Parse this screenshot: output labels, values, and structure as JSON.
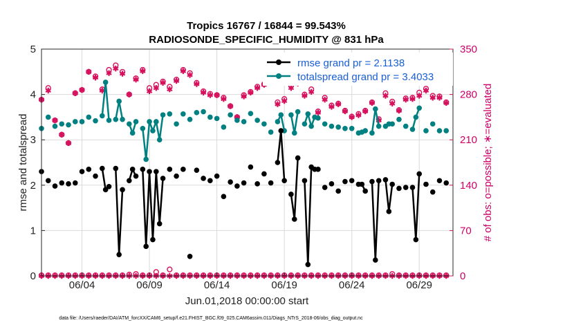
{
  "chart_data": {
    "type": "line",
    "title": "Tropics 16767 / 16844 = 99.543%",
    "subtitle": "RADIOSONDE_SPECIFIC_HUMIDITY @ 831 hPa",
    "xlabel": "Jun.01,2018 00:00:00 start",
    "ylabel": "rmse and totalspread",
    "y2label": "# of obs: o=possible; ∗=evaluated",
    "xlim": [
      1,
      31.5
    ],
    "ylim": [
      0,
      5
    ],
    "y2lim": [
      0,
      350
    ],
    "x_ticks": [
      {
        "v": 4,
        "label": "06/04"
      },
      {
        "v": 9,
        "label": "06/09"
      },
      {
        "v": 14,
        "label": "06/14"
      },
      {
        "v": 19,
        "label": "06/19"
      },
      {
        "v": 24,
        "label": "06/24"
      },
      {
        "v": 29,
        "label": "06/29"
      }
    ],
    "y_ticks": [
      "0",
      "1",
      "2",
      "3",
      "4",
      "5"
    ],
    "y2_ticks": [
      "0",
      "70",
      "140",
      "210",
      "280",
      "350"
    ],
    "colors": {
      "rmse": "#000000",
      "spread": "#008080",
      "obs": "#d6105c",
      "grid": "#d9d9d9"
    },
    "series": [
      {
        "name": "rmse grand pr = 2.1138",
        "key": "rmse",
        "x": [
          1.0,
          1.5,
          2.0,
          2.5,
          3.0,
          3.5,
          4.0,
          4.5,
          5.0,
          5.5,
          5.75,
          6.0,
          6.5,
          6.75,
          7.0,
          7.5,
          7.75,
          8.0,
          8.5,
          8.75,
          9.0,
          9.25,
          9.5,
          9.75,
          10.0,
          10.5,
          11.0,
          11.5,
          12.0,
          12.5,
          13.0,
          13.5,
          14.0,
          14.5,
          15.0,
          15.5,
          16.0,
          16.5,
          17.0,
          17.5,
          18.0,
          18.5,
          18.75,
          19.0,
          19.5,
          19.75,
          20.0,
          20.5,
          20.75,
          21.0,
          21.25,
          21.5,
          22.0,
          22.5,
          23.0,
          23.5,
          24.0,
          24.5,
          24.75,
          25.0,
          25.5,
          25.75,
          26.0,
          26.5,
          26.75,
          27.0,
          27.5,
          28.0,
          28.5,
          28.75,
          29.0,
          29.5,
          30.0,
          30.5,
          31.0
        ],
        "values": [
          2.3,
          2.1,
          1.98,
          2.05,
          2.03,
          2.05,
          2.3,
          2.35,
          2.2,
          2.37,
          1.9,
          1.97,
          2.37,
          0.47,
          1.9,
          2.1,
          2.35,
          2.2,
          2.35,
          0.65,
          2.3,
          0.8,
          2.3,
          1.15,
          2.15,
          2.35,
          2.2,
          2.35,
          0.43,
          2.33,
          2.15,
          2.1,
          2.2,
          1.75,
          2.07,
          1.98,
          2.05,
          2.4,
          2.03,
          2.25,
          2.05,
          2.5,
          3.2,
          2.1,
          1.8,
          1.25,
          2.6,
          2.1,
          0.25,
          2.4,
          2.35,
          2.35,
          1.95,
          2.03,
          1.87,
          2.08,
          2.1,
          2.02,
          2.02,
          1.87,
          2.08,
          0.35,
          2.1,
          2.12,
          1.42,
          2.02,
          1.93,
          1.95,
          1.95,
          0.8,
          2.25,
          2.02,
          1.85,
          2.1,
          2.05
        ]
      },
      {
        "name": "totalspread grand pr = 3.4033",
        "key": "spread",
        "x": [
          1.0,
          1.5,
          2.0,
          2.5,
          3.0,
          3.5,
          4.0,
          4.5,
          5.0,
          5.5,
          5.75,
          6.0,
          6.5,
          6.75,
          7.0,
          7.5,
          7.75,
          8.0,
          8.5,
          8.75,
          9.0,
          9.25,
          9.5,
          9.75,
          10.0,
          10.5,
          11.0,
          11.5,
          12.0,
          12.5,
          13.0,
          13.5,
          14.0,
          14.5,
          15.0,
          15.5,
          16.0,
          16.5,
          17.0,
          17.5,
          18.0,
          18.5,
          18.75,
          19.0,
          19.5,
          19.75,
          20.0,
          20.5,
          20.75,
          21.0,
          21.25,
          21.5,
          22.0,
          22.5,
          23.0,
          23.5,
          24.0,
          24.5,
          24.75,
          25.0,
          25.5,
          25.75,
          26.0,
          26.5,
          26.75,
          27.0,
          27.5,
          28.0,
          28.5,
          28.75,
          29.0,
          29.5,
          30.0,
          30.5,
          31.0
        ],
        "values": [
          3.25,
          3.5,
          3.3,
          3.35,
          3.33,
          3.4,
          3.4,
          3.5,
          3.42,
          3.53,
          4.27,
          3.43,
          3.45,
          3.85,
          3.45,
          3.35,
          3.15,
          3.4,
          3.25,
          2.57,
          3.4,
          3.2,
          3.4,
          3.0,
          3.55,
          3.57,
          3.35,
          3.57,
          3.45,
          3.6,
          3.62,
          3.5,
          3.47,
          3.28,
          3.55,
          3.43,
          3.4,
          3.58,
          3.43,
          3.35,
          3.17,
          3.4,
          3.55,
          3.2,
          3.55,
          3.15,
          3.62,
          3.35,
          3.57,
          3.3,
          3.5,
          3.48,
          3.35,
          3.3,
          3.28,
          3.25,
          3.25,
          3.15,
          3.17,
          3.2,
          3.15,
          3.68,
          3.3,
          3.3,
          3.35,
          3.35,
          3.45,
          3.3,
          3.23,
          3.5,
          3.7,
          3.2,
          3.35,
          3.2,
          3.2
        ]
      },
      {
        "name": "obs possible",
        "key": "obs_possible",
        "x": [
          1.0,
          1.5,
          2.0,
          2.5,
          3.0,
          3.5,
          4.0,
          4.5,
          5.0,
          5.5,
          6.0,
          6.5,
          7.0,
          7.5,
          8.0,
          8.5,
          9.0,
          9.5,
          10.0,
          10.5,
          11.0,
          11.5,
          12.0,
          12.5,
          13.0,
          13.5,
          14.0,
          14.5,
          15.0,
          15.5,
          16.0,
          16.5,
          17.0,
          17.5,
          18.0,
          18.5,
          19.0,
          19.5,
          20.0,
          20.5,
          21.0,
          21.5,
          22.0,
          22.5,
          23.0,
          23.5,
          24.0,
          24.5,
          25.0,
          25.5,
          26.0,
          26.5,
          27.0,
          27.5,
          28.0,
          28.5,
          29.0,
          29.5,
          30.0,
          30.5,
          31.0
        ],
        "values": [
          272,
          290,
          240,
          218,
          205,
          282,
          287,
          315,
          308,
          288,
          318,
          325,
          315,
          280,
          305,
          318,
          290,
          295,
          300,
          292,
          303,
          318,
          313,
          298,
          285,
          281,
          279,
          275,
          262,
          245,
          279,
          284,
          292,
          296,
          302,
          268,
          273,
          294,
          299,
          280,
          288,
          254,
          275,
          263,
          266,
          255,
          246,
          250,
          255,
          268,
          242,
          282,
          269,
          256,
          274,
          275,
          283,
          289,
          278,
          277,
          268
        ]
      },
      {
        "name": "obs evaluated",
        "key": "obs_evaluated",
        "x": [
          1.0,
          1.5,
          2.0,
          2.5,
          3.0,
          3.5,
          4.0,
          4.5,
          5.0,
          5.5,
          6.0,
          6.5,
          7.0,
          7.5,
          8.0,
          8.5,
          9.0,
          9.5,
          10.0,
          10.5,
          11.0,
          11.5,
          12.0,
          12.5,
          13.0,
          13.5,
          14.0,
          14.5,
          15.0,
          15.5,
          16.0,
          16.5,
          17.0,
          17.5,
          18.0,
          18.5,
          19.0,
          19.5,
          20.0,
          20.5,
          21.0,
          21.5,
          22.0,
          22.5,
          23.0,
          23.5,
          24.0,
          24.5,
          25.0,
          25.5,
          26.0,
          26.5,
          27.0,
          27.5,
          28.0,
          28.5,
          29.0,
          29.5,
          30.0,
          30.5,
          31.0
        ],
        "values": [
          272,
          286,
          240,
          218,
          205,
          282,
          287,
          315,
          306,
          286,
          313,
          320,
          312,
          280,
          303,
          316,
          285,
          290,
          298,
          288,
          301,
          316,
          310,
          296,
          283,
          279,
          279,
          273,
          262,
          245,
          277,
          283,
          290,
          295,
          300,
          265,
          270,
          290,
          297,
          278,
          284,
          252,
          272,
          261,
          265,
          254,
          245,
          248,
          254,
          267,
          240,
          278,
          266,
          255,
          272,
          273,
          278,
          286,
          275,
          275,
          267
        ]
      },
      {
        "name": "obs bottom possible",
        "key": "obs_bottom_possible",
        "x": [
          1.0,
          1.5,
          2.0,
          2.5,
          3.0,
          3.5,
          4.0,
          4.5,
          5.0,
          5.5,
          6.0,
          6.5,
          7.0,
          7.5,
          8.0,
          8.5,
          9.0,
          9.5,
          10.0,
          10.5,
          11.0,
          11.5,
          12.0,
          12.5,
          13.0,
          13.5,
          14.0,
          14.5,
          15.0,
          15.5,
          16.0,
          16.5,
          17.0,
          17.5,
          18.0,
          18.5,
          19.0,
          19.5,
          20.0,
          20.5,
          21.0,
          21.5,
          22.0,
          22.5,
          23.0,
          23.5,
          24.0,
          24.5,
          25.0,
          25.5,
          26.0,
          26.5,
          27.0,
          27.5,
          28.0,
          28.5,
          29.0,
          29.5,
          30.0,
          30.5,
          31.0
        ],
        "values": [
          1,
          1,
          1,
          1,
          1,
          1,
          1,
          1,
          1,
          1,
          1,
          1,
          1,
          2,
          3,
          1,
          1,
          6,
          1,
          10,
          1,
          1,
          1,
          1,
          1,
          1,
          1,
          1,
          1,
          1,
          1,
          1,
          1,
          1,
          1,
          1,
          1,
          1,
          1,
          1,
          1,
          1,
          1,
          1,
          1,
          1,
          1,
          1,
          1,
          1,
          1,
          1,
          3,
          1,
          1,
          1,
          1,
          1,
          1,
          1,
          1
        ]
      },
      {
        "name": "obs bottom evaluated",
        "key": "obs_bottom_evaluated",
        "x": [
          1.0,
          1.5,
          2.0,
          2.5,
          3.0,
          3.5,
          4.0,
          4.5,
          5.0,
          5.5,
          6.0,
          6.5,
          7.0,
          7.5,
          8.0,
          8.5,
          9.0,
          9.5,
          10.0,
          10.5,
          11.0,
          11.5,
          12.0,
          12.5,
          13.0,
          13.5,
          14.0,
          14.5,
          15.0,
          15.5,
          16.0,
          16.5,
          17.0,
          17.5,
          18.0,
          18.5,
          19.0,
          19.5,
          20.0,
          20.5,
          21.0,
          21.5,
          22.0,
          22.5,
          23.0,
          23.5,
          24.0,
          24.5,
          25.0,
          25.5,
          26.0,
          26.5,
          27.0,
          27.5,
          28.0,
          28.5,
          29.0,
          29.5,
          30.0,
          30.5,
          31.0
        ],
        "values": [
          0,
          0,
          0,
          0,
          0,
          0,
          0,
          0,
          0,
          0,
          0,
          0,
          0,
          0,
          0,
          0,
          0,
          0,
          0,
          0,
          0,
          0,
          0,
          0,
          0,
          0,
          0,
          0,
          0,
          0,
          0,
          0,
          0,
          0,
          0,
          0,
          0,
          0,
          0,
          0,
          0,
          0,
          0,
          0,
          0,
          0,
          0,
          0,
          0,
          0,
          0,
          0,
          0,
          0,
          0,
          0,
          0,
          0,
          0,
          0,
          0
        ]
      }
    ],
    "legend": {
      "position": "top-right",
      "entries": [
        "rmse grand pr = 2.1138",
        "totalspread grand pr = 3.4033"
      ]
    },
    "footer": "data file: /Users/raeder/DAI/ATM_forcXX/CAM6_setup/f.e21.FHIST_BGC.f09_025.CAM6assim.011/Diags_NTrS_2018-06/obs_diag_output.nc"
  }
}
